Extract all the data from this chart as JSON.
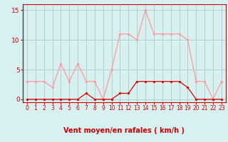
{
  "hours": [
    0,
    1,
    2,
    3,
    4,
    5,
    6,
    7,
    8,
    9,
    10,
    11,
    12,
    13,
    14,
    15,
    16,
    17,
    18,
    19,
    20,
    21,
    22,
    23
  ],
  "rafales": [
    3,
    3,
    3,
    2,
    6,
    3,
    6,
    3,
    3,
    0,
    5,
    11,
    11,
    10,
    15,
    11,
    11,
    11,
    11,
    10,
    3,
    3,
    0,
    3
  ],
  "vent_moyen": [
    0,
    0,
    0,
    0,
    0,
    0,
    0,
    1,
    0,
    0,
    0,
    1,
    1,
    3,
    3,
    3,
    3,
    3,
    3,
    2,
    0,
    0,
    0,
    0
  ],
  "line_color_rafales": "#ff9999",
  "line_color_vent": "#dd0000",
  "bg_color": "#d8f0f0",
  "grid_color": "#aacccc",
  "axis_color": "#cc0000",
  "xlabel": "Vent moyen/en rafales ( km/h )",
  "ylim": [
    -0.5,
    16
  ],
  "yticks": [
    0,
    5,
    10,
    15
  ],
  "xticks": [
    0,
    1,
    2,
    3,
    4,
    5,
    6,
    7,
    8,
    9,
    10,
    11,
    12,
    13,
    14,
    15,
    16,
    17,
    18,
    19,
    20,
    21,
    22,
    23
  ]
}
